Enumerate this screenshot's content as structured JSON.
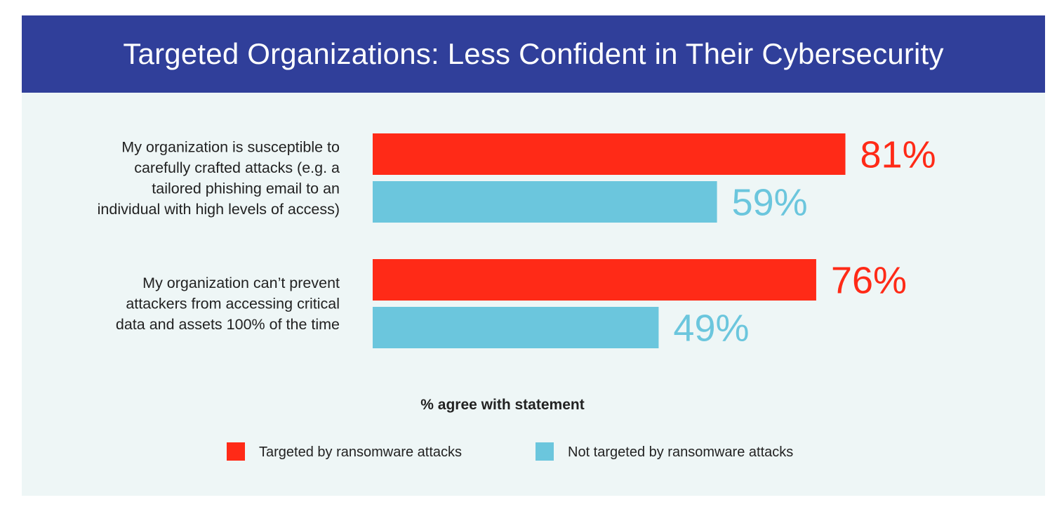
{
  "title": "Targeted Organizations: Less Confident in Their Cybersecurity",
  "colors": {
    "header_bg": "#303f9a",
    "panel_bg": "#eef6f6",
    "targeted": "#ff2a17",
    "not_targeted": "#6bc6dd"
  },
  "chart_data": {
    "type": "bar",
    "orientation": "horizontal",
    "title": "Targeted Organizations: Less Confident in Their Cybersecurity",
    "xlabel": "% agree with statement",
    "ylabel": "",
    "categories": [
      [
        "My organization is susceptible to",
        "carefully crafted attacks (e.g. a",
        "tailored phishing email to an",
        "individual with high levels of access)"
      ],
      [
        "My organization can’t prevent",
        "attackers from accessing critical",
        "data and assets 100% of the time"
      ]
    ],
    "series": [
      {
        "name": "Targeted by ransomware attacks",
        "values": [
          81,
          76
        ],
        "labels": [
          "81%",
          "76%"
        ],
        "color": "#ff2a17"
      },
      {
        "name": "Not targeted by ransomware attacks",
        "values": [
          59,
          49
        ],
        "labels": [
          "59%",
          "49%"
        ],
        "color": "#6bc6dd"
      }
    ],
    "xlim": [
      0,
      100
    ],
    "grid": false,
    "legend_position": "bottom"
  }
}
